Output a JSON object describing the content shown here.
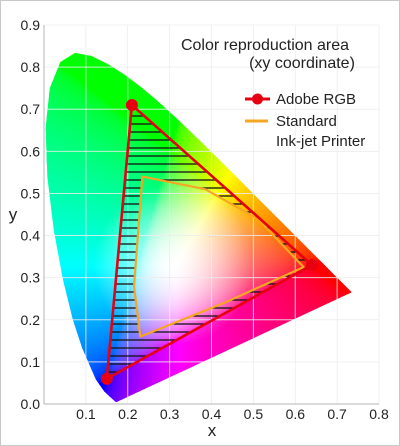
{
  "chart_data": {
    "type": "scatter",
    "title": "Color reproduction area",
    "subtitle": "(xy coordinate)",
    "xlabel": "x",
    "ylabel": "y",
    "xlim": [
      0.0,
      0.8
    ],
    "ylim": [
      0.0,
      0.9
    ],
    "grid": true,
    "legend_position": "top-right",
    "x_ticks": [
      "0.1",
      "0.2",
      "0.3",
      "0.4",
      "0.5",
      "0.6",
      "0.7",
      "0.8"
    ],
    "y_ticks": [
      "0.0",
      "0.1",
      "0.2",
      "0.3",
      "0.4",
      "0.5",
      "0.6",
      "0.7",
      "0.8",
      "0.9"
    ],
    "series": [
      {
        "name": "Adobe RGB",
        "color": "#e60012",
        "closed": true,
        "points": [
          [
            0.64,
            0.33
          ],
          [
            0.21,
            0.71
          ],
          [
            0.15,
            0.06
          ]
        ]
      },
      {
        "name": "Standard Ink-jet Printer",
        "color": "#f5a623",
        "closed": true,
        "points": [
          [
            0.235,
            0.54
          ],
          [
            0.385,
            0.51
          ],
          [
            0.51,
            0.44
          ],
          [
            0.62,
            0.325
          ],
          [
            0.43,
            0.24
          ],
          [
            0.23,
            0.16
          ],
          [
            0.215,
            0.28
          ]
        ]
      }
    ],
    "spectral_locus": [
      [
        0.1741,
        0.005
      ],
      [
        0.1738,
        0.0049
      ],
      [
        0.1733,
        0.0048
      ],
      [
        0.1726,
        0.0048
      ],
      [
        0.1714,
        0.0051
      ],
      [
        0.1689,
        0.0069
      ],
      [
        0.1644,
        0.0109
      ],
      [
        0.1566,
        0.0177
      ],
      [
        0.144,
        0.0297
      ],
      [
        0.1241,
        0.0578
      ],
      [
        0.0913,
        0.1327
      ],
      [
        0.0687,
        0.2007
      ],
      [
        0.0454,
        0.295
      ],
      [
        0.0235,
        0.4127
      ],
      [
        0.0082,
        0.5384
      ],
      [
        0.0039,
        0.6548
      ],
      [
        0.0139,
        0.7502
      ],
      [
        0.0389,
        0.812
      ],
      [
        0.0743,
        0.8338
      ],
      [
        0.1142,
        0.8262
      ],
      [
        0.1547,
        0.8059
      ],
      [
        0.1929,
        0.7816
      ],
      [
        0.2296,
        0.7543
      ],
      [
        0.2658,
        0.7243
      ],
      [
        0.3016,
        0.6923
      ],
      [
        0.3373,
        0.6589
      ],
      [
        0.3731,
        0.6245
      ],
      [
        0.4087,
        0.5896
      ],
      [
        0.4441,
        0.5547
      ],
      [
        0.4788,
        0.5202
      ],
      [
        0.5125,
        0.4866
      ],
      [
        0.5448,
        0.4544
      ],
      [
        0.5752,
        0.4242
      ],
      [
        0.6029,
        0.3965
      ],
      [
        0.627,
        0.3725
      ],
      [
        0.6482,
        0.3514
      ],
      [
        0.6658,
        0.334
      ],
      [
        0.6915,
        0.3083
      ],
      [
        0.7079,
        0.292
      ],
      [
        0.7347,
        0.2653
      ]
    ]
  }
}
